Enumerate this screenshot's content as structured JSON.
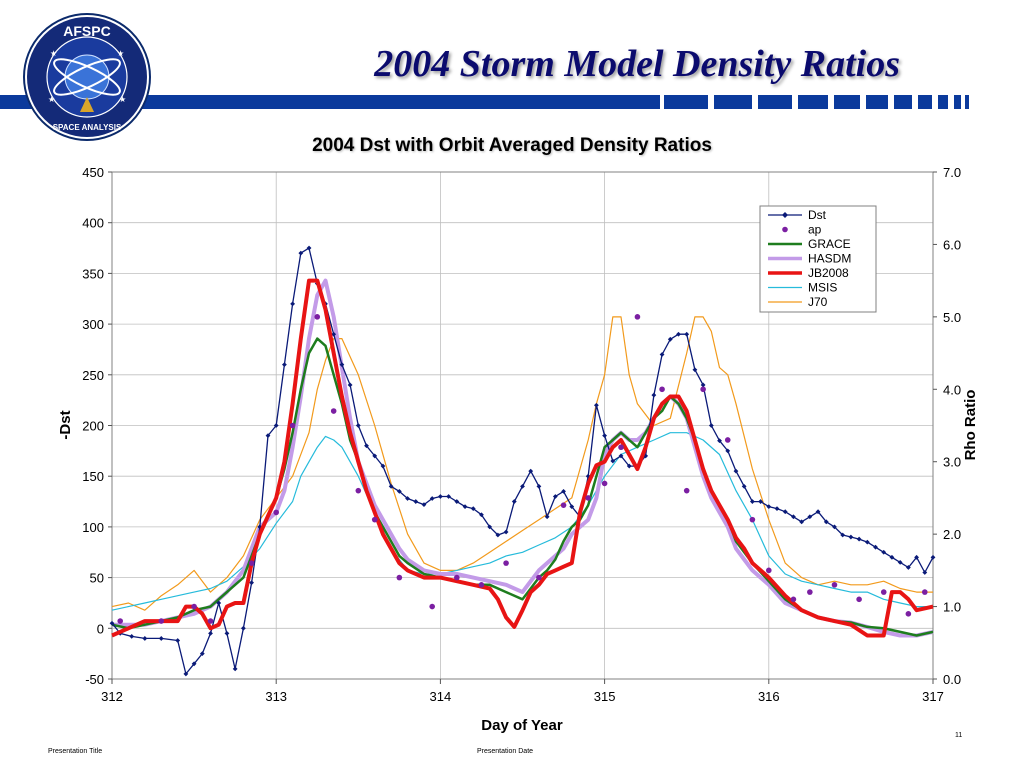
{
  "slide": {
    "title": "2004 Storm Model Density Ratios",
    "logo_top": "AFSPC",
    "logo_bottom": "SPACE ANALYSIS",
    "footer_title": "Presentation Title",
    "footer_date": "Presentation Date",
    "page_number": "11",
    "brand_color": "#0b3a9c"
  },
  "chart_data": {
    "type": "line",
    "title": "2004 Dst with Orbit Averaged Density Ratios",
    "xlabel": "Day of Year",
    "ylabel": "-Dst",
    "y2label": "Rho Ratio",
    "xlim": [
      312,
      317
    ],
    "ylim": [
      -50,
      450
    ],
    "y2lim": [
      0.0,
      7.0
    ],
    "xticks": [
      "312",
      "313",
      "314",
      "315",
      "316",
      "317"
    ],
    "yticks": [
      "450",
      "400",
      "350",
      "300",
      "250",
      "200",
      "150",
      "100",
      "50",
      "0",
      "-50"
    ],
    "y2ticks": [
      "7.0",
      "6.0",
      "5.0",
      "4.0",
      "3.0",
      "2.0",
      "1.0",
      "0.0"
    ],
    "grid": true,
    "legend_position": "top-right",
    "series": [
      {
        "name": "Dst",
        "axis": "left",
        "color": "#0a1a78",
        "marker": "diamond",
        "x": [
          312.0,
          312.05,
          312.12,
          312.2,
          312.3,
          312.4,
          312.45,
          312.5,
          312.55,
          312.6,
          312.65,
          312.7,
          312.75,
          312.8,
          312.85,
          312.9,
          312.95,
          313.0,
          313.05,
          313.1,
          313.15,
          313.2,
          313.25,
          313.3,
          313.35,
          313.4,
          313.45,
          313.5,
          313.55,
          313.6,
          313.65,
          313.7,
          313.75,
          313.8,
          313.85,
          313.9,
          313.95,
          314.0,
          314.05,
          314.1,
          314.15,
          314.2,
          314.25,
          314.3,
          314.35,
          314.4,
          314.45,
          314.5,
          314.55,
          314.6,
          314.65,
          314.7,
          314.75,
          314.8,
          314.85,
          314.9,
          314.95,
          315.0,
          315.05,
          315.1,
          315.15,
          315.2,
          315.25,
          315.3,
          315.35,
          315.4,
          315.45,
          315.5,
          315.55,
          315.6,
          315.65,
          315.7,
          315.75,
          315.8,
          315.85,
          315.9,
          315.95,
          316.0,
          316.05,
          316.1,
          316.15,
          316.2,
          316.25,
          316.3,
          316.35,
          316.4,
          316.45,
          316.5,
          316.55,
          316.6,
          316.65,
          316.7,
          316.75,
          316.8,
          316.85,
          316.9,
          316.95,
          317.0
        ],
        "values": [
          5,
          -5,
          -8,
          -10,
          -10,
          -12,
          -45,
          -35,
          -25,
          -5,
          25,
          -5,
          -40,
          0,
          45,
          100,
          190,
          200,
          260,
          320,
          370,
          375,
          340,
          320,
          290,
          260,
          240,
          200,
          180,
          170,
          160,
          140,
          135,
          128,
          125,
          122,
          128,
          130,
          130,
          125,
          120,
          118,
          112,
          100,
          92,
          95,
          125,
          140,
          155,
          140,
          110,
          130,
          135,
          120,
          110,
          150,
          220,
          190,
          165,
          170,
          160,
          160,
          170,
          230,
          270,
          285,
          290,
          290,
          255,
          240,
          200,
          185,
          175,
          155,
          140,
          125,
          125,
          120,
          118,
          115,
          110,
          105,
          110,
          115,
          105,
          100,
          92,
          90,
          88,
          85,
          80,
          75,
          70,
          65,
          60,
          70,
          55,
          70
        ]
      },
      {
        "name": "ap",
        "axis": "right",
        "color": "#7b1fa2",
        "marker": "circle",
        "line": false,
        "x": [
          312.05,
          312.3,
          312.5,
          312.6,
          312.85,
          313.0,
          313.1,
          313.25,
          313.35,
          313.5,
          313.6,
          313.75,
          313.95,
          314.1,
          314.25,
          314.4,
          314.6,
          314.75,
          314.9,
          315.0,
          315.1,
          315.2,
          315.35,
          315.5,
          315.6,
          315.75,
          315.9,
          316.0,
          316.15,
          316.25,
          316.4,
          316.55,
          316.7,
          316.85,
          316.95
        ],
        "values": [
          0.8,
          0.8,
          1.0,
          0.8,
          1.6,
          2.3,
          3.5,
          5.0,
          3.7,
          2.6,
          2.2,
          1.4,
          1.0,
          1.4,
          1.3,
          1.6,
          1.4,
          2.4,
          2.5,
          2.7,
          3.2,
          5.0,
          4.0,
          2.6,
          4.0,
          3.3,
          2.2,
          1.5,
          1.1,
          1.2,
          1.3,
          1.1,
          1.2,
          0.9,
          1.2
        ]
      },
      {
        "name": "GRACE",
        "axis": "right",
        "color": "#1e7d1e",
        "width": 2.5,
        "x": [
          312.0,
          312.1,
          312.2,
          312.3,
          312.4,
          312.5,
          312.6,
          312.7,
          312.8,
          312.85,
          312.9,
          313.0,
          313.05,
          313.1,
          313.15,
          313.2,
          313.25,
          313.3,
          313.35,
          313.4,
          313.45,
          313.5,
          313.55,
          313.6,
          313.65,
          313.7,
          313.75,
          313.8,
          313.9,
          314.0,
          314.1,
          314.2,
          314.3,
          314.4,
          314.5,
          314.55,
          314.6,
          314.65,
          314.7,
          314.75,
          314.8,
          314.85,
          314.9,
          314.95,
          315.0,
          315.05,
          315.1,
          315.15,
          315.2,
          315.25,
          315.3,
          315.35,
          315.4,
          315.45,
          315.5,
          315.55,
          315.6,
          315.65,
          315.7,
          315.75,
          315.8,
          315.85,
          315.9,
          316.0,
          316.1,
          316.2,
          316.3,
          316.4,
          316.5,
          316.6,
          316.7,
          316.8,
          316.9,
          317.0
        ],
        "values": [
          0.75,
          0.7,
          0.75,
          0.8,
          0.85,
          0.95,
          1.0,
          1.2,
          1.4,
          1.7,
          2.0,
          2.5,
          2.9,
          3.4,
          4.0,
          4.5,
          4.7,
          4.6,
          4.2,
          3.8,
          3.3,
          3.0,
          2.6,
          2.3,
          2.1,
          1.9,
          1.7,
          1.6,
          1.45,
          1.4,
          1.35,
          1.3,
          1.3,
          1.2,
          1.1,
          1.25,
          1.4,
          1.5,
          1.65,
          1.9,
          2.1,
          2.2,
          2.4,
          2.8,
          3.2,
          3.3,
          3.4,
          3.3,
          3.2,
          3.4,
          3.6,
          3.7,
          3.9,
          3.8,
          3.6,
          3.3,
          2.9,
          2.6,
          2.4,
          2.2,
          1.9,
          1.75,
          1.6,
          1.35,
          1.1,
          0.95,
          0.85,
          0.8,
          0.78,
          0.72,
          0.7,
          0.65,
          0.6,
          0.65
        ]
      },
      {
        "name": "HASDM",
        "axis": "right",
        "color": "#c39be8",
        "width": 4,
        "x": [
          312.0,
          312.1,
          312.2,
          312.3,
          312.4,
          312.5,
          312.6,
          312.7,
          312.8,
          312.85,
          312.9,
          313.0,
          313.05,
          313.1,
          313.15,
          313.2,
          313.25,
          313.3,
          313.35,
          313.4,
          313.45,
          313.5,
          313.55,
          313.6,
          313.65,
          313.7,
          313.75,
          313.8,
          313.9,
          314.0,
          314.1,
          314.2,
          314.3,
          314.4,
          314.5,
          314.55,
          314.6,
          314.65,
          314.7,
          314.75,
          314.8,
          314.85,
          314.9,
          314.95,
          315.0,
          315.05,
          315.1,
          315.15,
          315.2,
          315.25,
          315.3,
          315.35,
          315.4,
          315.45,
          315.5,
          315.55,
          315.6,
          315.65,
          315.7,
          315.75,
          315.8,
          315.85,
          315.9,
          316.0,
          316.1,
          316.2,
          316.3,
          316.4,
          316.5,
          316.6,
          316.7,
          316.8,
          316.9,
          317.0
        ],
        "values": [
          0.75,
          0.75,
          0.75,
          0.8,
          0.85,
          0.9,
          1.0,
          1.2,
          1.5,
          1.8,
          2.1,
          2.3,
          2.6,
          3.2,
          3.9,
          4.7,
          5.3,
          5.5,
          5.0,
          4.3,
          3.6,
          3.0,
          2.7,
          2.4,
          2.2,
          2.0,
          1.8,
          1.65,
          1.5,
          1.45,
          1.45,
          1.4,
          1.35,
          1.3,
          1.2,
          1.35,
          1.5,
          1.6,
          1.7,
          1.8,
          2.0,
          2.1,
          2.2,
          2.5,
          3.1,
          3.3,
          3.4,
          3.3,
          3.3,
          3.4,
          3.6,
          3.8,
          3.9,
          3.8,
          3.6,
          3.2,
          2.8,
          2.5,
          2.3,
          2.1,
          1.8,
          1.65,
          1.5,
          1.3,
          1.05,
          0.95,
          0.85,
          0.8,
          0.78,
          0.72,
          0.65,
          0.6,
          0.6,
          0.65
        ]
      },
      {
        "name": "JB2008",
        "axis": "right",
        "color": "#e81414",
        "width": 4,
        "x": [
          312.0,
          312.1,
          312.2,
          312.3,
          312.4,
          312.45,
          312.5,
          312.55,
          312.6,
          312.65,
          312.7,
          312.75,
          312.8,
          312.85,
          312.9,
          313.0,
          313.05,
          313.1,
          313.15,
          313.2,
          313.25,
          313.3,
          313.35,
          313.4,
          313.45,
          313.5,
          313.55,
          313.6,
          313.65,
          313.7,
          313.75,
          313.8,
          313.9,
          314.0,
          314.1,
          314.2,
          314.3,
          314.35,
          314.4,
          314.45,
          314.5,
          314.55,
          314.6,
          314.65,
          314.7,
          314.75,
          314.8,
          314.85,
          314.9,
          314.95,
          315.0,
          315.05,
          315.1,
          315.15,
          315.2,
          315.25,
          315.3,
          315.35,
          315.4,
          315.45,
          315.5,
          315.55,
          315.6,
          315.65,
          315.7,
          315.75,
          315.8,
          315.85,
          315.9,
          316.0,
          316.1,
          316.2,
          316.3,
          316.4,
          316.5,
          316.6,
          316.7,
          316.75,
          316.8,
          316.85,
          316.9,
          317.0
        ],
        "values": [
          0.6,
          0.7,
          0.8,
          0.8,
          0.8,
          1.0,
          1.0,
          0.9,
          0.7,
          0.75,
          1.0,
          1.05,
          1.05,
          1.6,
          2.0,
          2.5,
          3.0,
          3.8,
          4.7,
          5.5,
          5.5,
          5.1,
          4.5,
          3.9,
          3.4,
          3.0,
          2.6,
          2.3,
          2.0,
          1.8,
          1.6,
          1.5,
          1.4,
          1.4,
          1.35,
          1.3,
          1.25,
          1.1,
          0.85,
          0.72,
          0.95,
          1.2,
          1.3,
          1.45,
          1.5,
          1.55,
          1.6,
          2.3,
          2.7,
          2.95,
          3.0,
          3.2,
          3.3,
          3.1,
          2.9,
          3.2,
          3.6,
          3.8,
          3.9,
          3.9,
          3.7,
          3.3,
          2.9,
          2.6,
          2.4,
          2.2,
          1.95,
          1.8,
          1.6,
          1.4,
          1.15,
          0.95,
          0.85,
          0.8,
          0.75,
          0.6,
          0.6,
          1.2,
          1.2,
          1.1,
          0.95,
          1.0
        ]
      },
      {
        "name": "MSIS",
        "axis": "right",
        "color": "#26bbdb",
        "width": 1.2,
        "x": [
          312.0,
          312.1,
          312.2,
          312.3,
          312.4,
          312.5,
          312.6,
          312.7,
          312.8,
          312.9,
          313.0,
          313.1,
          313.15,
          313.2,
          313.25,
          313.3,
          313.35,
          313.4,
          313.5,
          313.6,
          313.7,
          313.8,
          313.9,
          314.0,
          314.1,
          314.2,
          314.3,
          314.4,
          314.5,
          314.6,
          314.7,
          314.8,
          314.9,
          315.0,
          315.1,
          315.2,
          315.3,
          315.4,
          315.5,
          315.6,
          315.7,
          315.8,
          315.9,
          316.0,
          316.1,
          316.2,
          316.3,
          316.4,
          316.5,
          316.6,
          316.7,
          316.8,
          316.9,
          317.0
        ],
        "values": [
          0.95,
          1.0,
          1.05,
          1.1,
          1.15,
          1.2,
          1.25,
          1.35,
          1.55,
          1.8,
          2.15,
          2.45,
          2.8,
          3.0,
          3.2,
          3.35,
          3.3,
          3.2,
          2.8,
          2.3,
          1.8,
          1.5,
          1.45,
          1.45,
          1.5,
          1.55,
          1.6,
          1.7,
          1.75,
          1.85,
          1.95,
          2.1,
          2.4,
          2.8,
          3.1,
          3.2,
          3.3,
          3.4,
          3.4,
          3.3,
          3.1,
          2.6,
          2.2,
          1.7,
          1.45,
          1.35,
          1.3,
          1.25,
          1.2,
          1.2,
          1.1,
          1.05,
          1.0,
          1.0
        ]
      },
      {
        "name": "J70",
        "axis": "right",
        "color": "#f29a1c",
        "width": 1.2,
        "x": [
          312.0,
          312.1,
          312.2,
          312.3,
          312.4,
          312.5,
          312.6,
          312.7,
          312.8,
          312.9,
          313.0,
          313.1,
          313.2,
          313.25,
          313.3,
          313.35,
          313.4,
          313.5,
          313.6,
          313.7,
          313.8,
          313.9,
          314.0,
          314.1,
          314.2,
          314.3,
          314.4,
          314.5,
          314.6,
          314.7,
          314.8,
          314.9,
          314.95,
          315.0,
          315.05,
          315.1,
          315.15,
          315.2,
          315.3,
          315.4,
          315.5,
          315.55,
          315.6,
          315.65,
          315.7,
          315.75,
          315.8,
          315.9,
          316.0,
          316.1,
          316.2,
          316.3,
          316.4,
          316.5,
          316.6,
          316.7,
          316.8,
          316.9,
          317.0
        ],
        "values": [
          1.0,
          1.05,
          0.95,
          1.15,
          1.3,
          1.5,
          1.2,
          1.4,
          1.7,
          2.2,
          2.5,
          2.8,
          3.4,
          4.0,
          4.4,
          4.7,
          4.7,
          4.2,
          3.5,
          2.7,
          2.0,
          1.6,
          1.5,
          1.5,
          1.6,
          1.75,
          1.9,
          2.05,
          2.2,
          2.35,
          2.5,
          3.3,
          3.8,
          4.2,
          5.0,
          5.0,
          4.2,
          3.8,
          3.5,
          3.6,
          4.5,
          5.0,
          5.0,
          4.8,
          4.3,
          4.2,
          3.8,
          2.9,
          2.2,
          1.6,
          1.4,
          1.3,
          1.35,
          1.3,
          1.3,
          1.35,
          1.25,
          1.2,
          1.2
        ]
      }
    ]
  }
}
